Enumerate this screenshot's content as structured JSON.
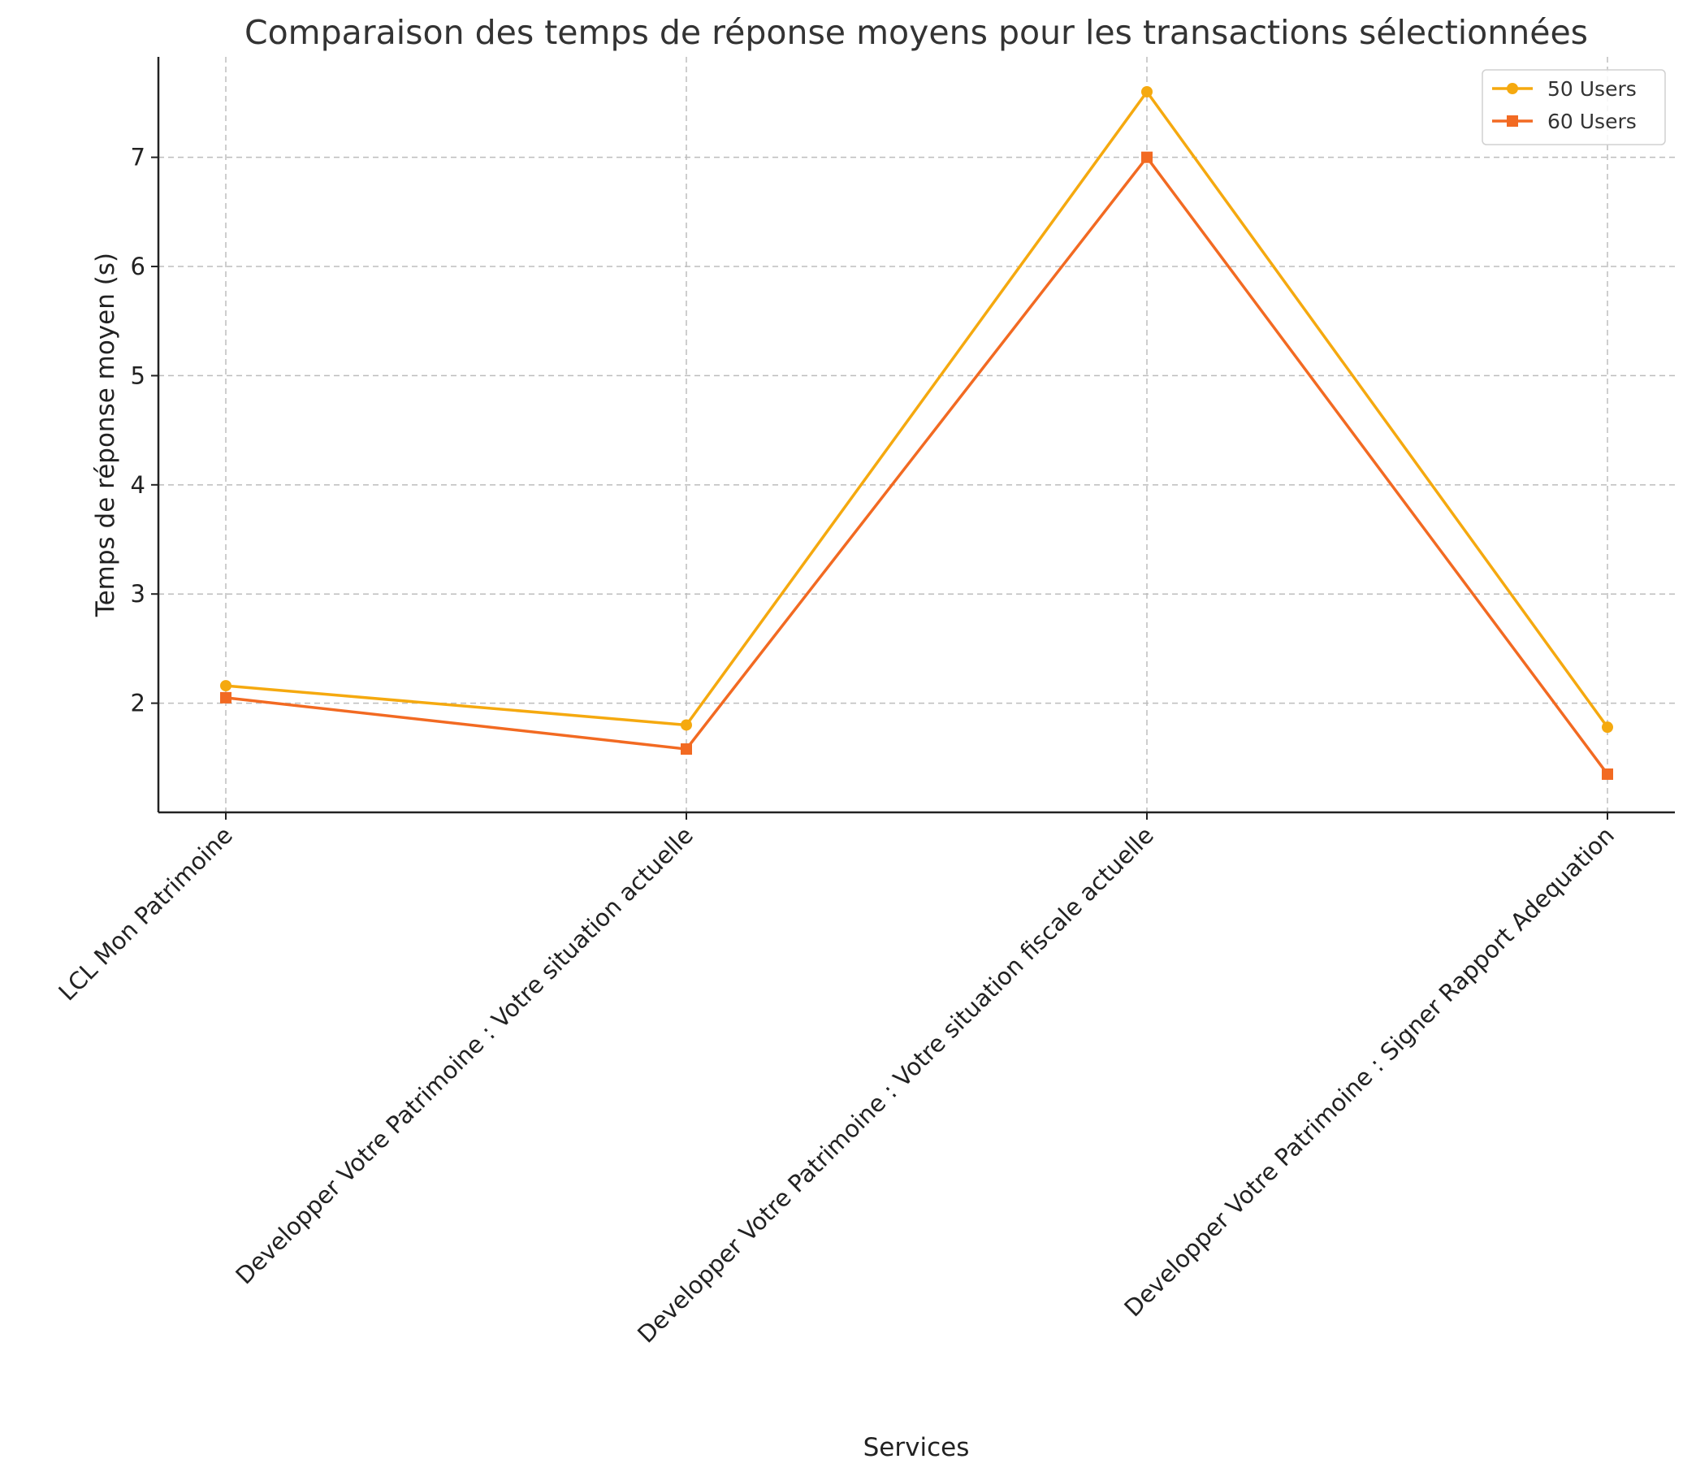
{
  "chart_data": {
    "type": "line",
    "title": "Comparaison des temps de réponse moyens pour les transactions sélectionnées",
    "xlabel": "Services",
    "ylabel": "Temps de réponse moyen (s)",
    "categories": [
      "LCL Mon Patrimoine",
      "Developper Votre Patrimoine : Votre situation actuelle",
      "Developper Votre Patrimoine : Votre situation fiscale actuelle",
      "Developper Votre Patrimoine : Signer Rapport Adequation"
    ],
    "series": [
      {
        "name": "50 Users",
        "values": [
          2.16,
          1.8,
          7.6,
          1.78
        ],
        "color": "#f5a90f",
        "marker": "circle"
      },
      {
        "name": "60 Users",
        "values": [
          2.05,
          1.58,
          7.0,
          1.35
        ],
        "color": "#f26a22",
        "marker": "square"
      }
    ],
    "yticks": [
      2,
      3,
      4,
      5,
      6,
      7
    ],
    "ylim": [
      1.0,
      7.92
    ],
    "grid": true,
    "legend_position": "top-right"
  }
}
